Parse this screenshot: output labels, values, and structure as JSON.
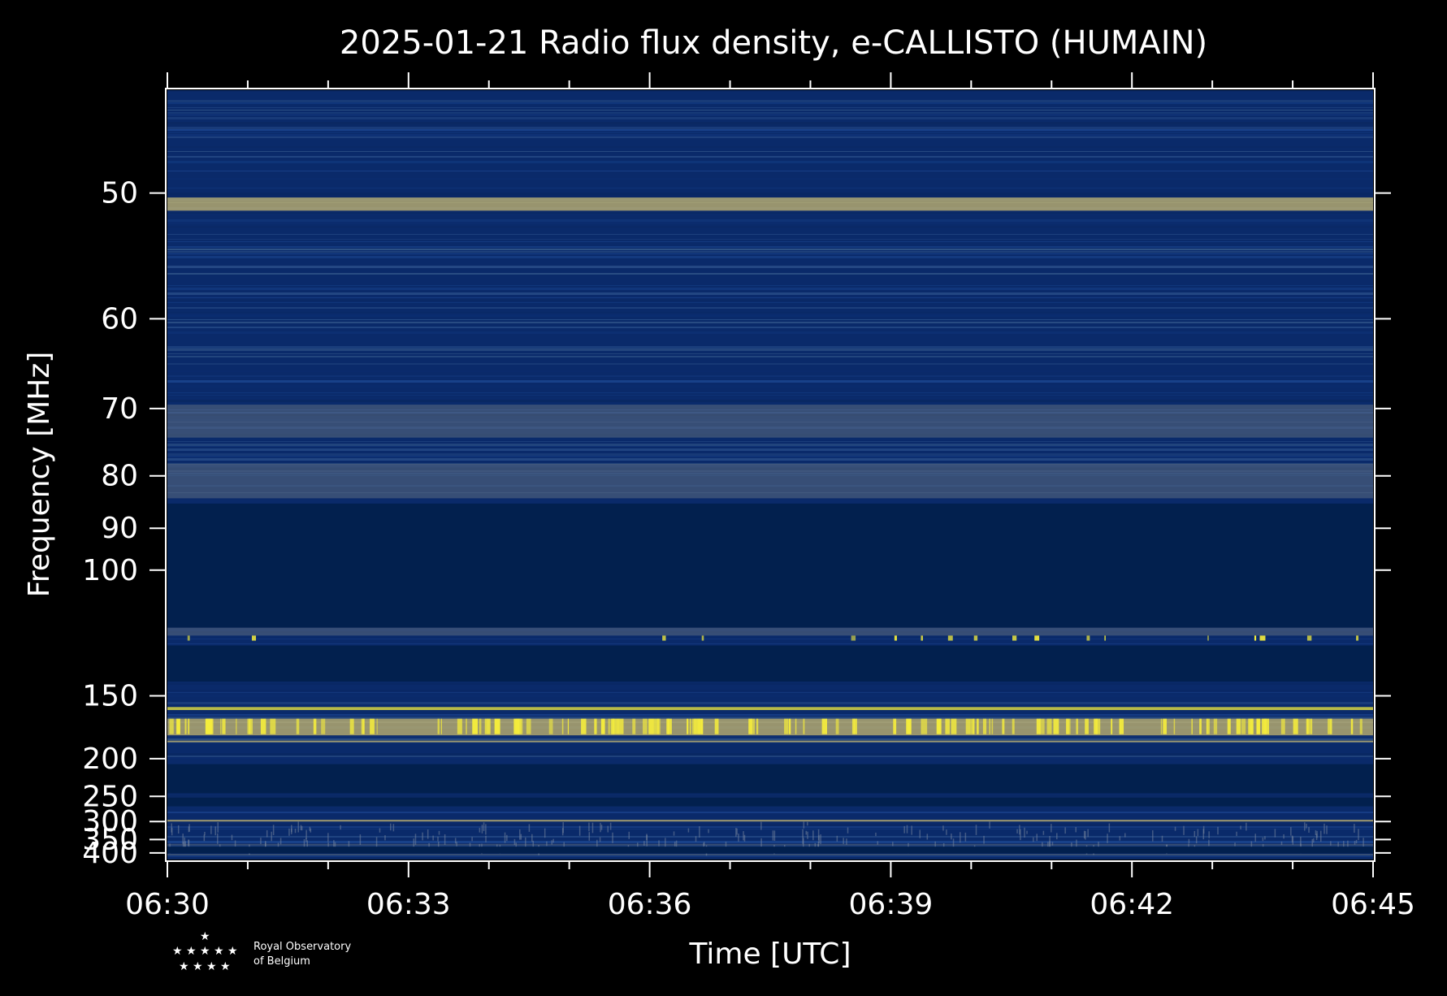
{
  "chart_data": {
    "type": "heatmap",
    "title": "2025-01-21 Radio flux density, e-CALLISTO (HUMAIN)",
    "xlabel": "Time [UTC]",
    "ylabel": "Frequency [MHz]",
    "x_ticks": [
      "06:30",
      "06:33",
      "06:36",
      "06:39",
      "06:42",
      "06:45"
    ],
    "x_range": [
      "06:30",
      "06:45"
    ],
    "x_minutes": [
      0,
      15
    ],
    "y_ticks": [
      50,
      60,
      70,
      80,
      90,
      100,
      150,
      200,
      250,
      300,
      350,
      400
    ],
    "y_range": [
      44,
      430
    ],
    "y_scale": "reciprocal",
    "grid": false,
    "colors": {
      "background": "#000000",
      "base": "#0a2a6a",
      "dark_gap": "#02204e",
      "medium": "#6e7a86",
      "bright": "#c8b870",
      "hot": "#f4ec3c"
    },
    "gaps_mhz": [
      [
        85,
        118
      ],
      [
        125,
        142
      ],
      [
        206,
        245
      ],
      [
        252,
        268
      ],
      [
        375,
        402
      ]
    ],
    "bright_bands_mhz": [
      {
        "f": [
          50.3,
          51.2
        ],
        "level": "bright"
      },
      {
        "f": [
          69.5,
          74
        ],
        "level": "medium"
      },
      {
        "f": [
          78,
          84
        ],
        "level": "medium"
      },
      {
        "f": [
          118,
          121
        ],
        "level": "medium"
      },
      {
        "f": [
          157,
          159
        ],
        "level": "hot"
      },
      {
        "f": [
          165,
          178
        ],
        "level": "bright"
      },
      {
        "f": [
          182.5,
          184
        ],
        "level": "bright"
      },
      {
        "f": [
          296,
          300
        ],
        "level": "bright"
      },
      {
        "f": [
          365,
          370
        ],
        "level": "medium"
      },
      {
        "f": [
          404,
          408
        ],
        "level": "medium"
      }
    ]
  },
  "logo": {
    "line1": "Royal Observatory",
    "line2": "of Belgium",
    "icon": "stars-icon"
  }
}
